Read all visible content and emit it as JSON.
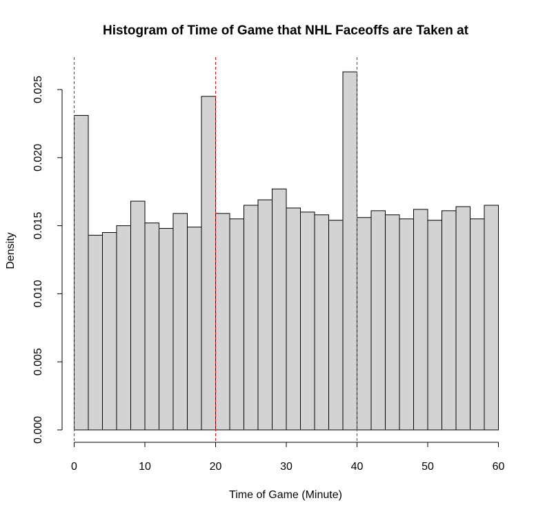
{
  "chart_data": {
    "type": "bar",
    "subtype": "histogram",
    "title": "Histogram of Time of Game that NHL Faceoffs are Taken at",
    "xlabel": "Time of Game (Minute)",
    "ylabel": "Density",
    "xlim": [
      0,
      60
    ],
    "ylim": [
      0,
      0.025
    ],
    "x_ticks": [
      "0",
      "10",
      "20",
      "30",
      "40",
      "50",
      "60"
    ],
    "y_ticks": [
      "0.000",
      "0.005",
      "0.010",
      "0.015",
      "0.020",
      "0.025"
    ],
    "bin_width": 2,
    "bins": [
      {
        "start": 0,
        "end": 2,
        "value": 0.0231
      },
      {
        "start": 2,
        "end": 4,
        "value": 0.0143
      },
      {
        "start": 4,
        "end": 6,
        "value": 0.0145
      },
      {
        "start": 6,
        "end": 8,
        "value": 0.015
      },
      {
        "start": 8,
        "end": 10,
        "value": 0.0168
      },
      {
        "start": 10,
        "end": 12,
        "value": 0.0152
      },
      {
        "start": 12,
        "end": 14,
        "value": 0.0148
      },
      {
        "start": 14,
        "end": 16,
        "value": 0.0159
      },
      {
        "start": 16,
        "end": 18,
        "value": 0.0149
      },
      {
        "start": 18,
        "end": 20,
        "value": 0.0245
      },
      {
        "start": 20,
        "end": 22,
        "value": 0.0159
      },
      {
        "start": 22,
        "end": 24,
        "value": 0.0155
      },
      {
        "start": 24,
        "end": 26,
        "value": 0.0165
      },
      {
        "start": 26,
        "end": 28,
        "value": 0.0169
      },
      {
        "start": 28,
        "end": 30,
        "value": 0.0177
      },
      {
        "start": 30,
        "end": 32,
        "value": 0.0163
      },
      {
        "start": 32,
        "end": 34,
        "value": 0.016
      },
      {
        "start": 34,
        "end": 36,
        "value": 0.0158
      },
      {
        "start": 36,
        "end": 38,
        "value": 0.0154
      },
      {
        "start": 38,
        "end": 40,
        "value": 0.0263
      },
      {
        "start": 40,
        "end": 42,
        "value": 0.0156
      },
      {
        "start": 42,
        "end": 44,
        "value": 0.0161
      },
      {
        "start": 44,
        "end": 46,
        "value": 0.0158
      },
      {
        "start": 46,
        "end": 48,
        "value": 0.0155
      },
      {
        "start": 48,
        "end": 50,
        "value": 0.0162
      },
      {
        "start": 50,
        "end": 52,
        "value": 0.0154
      },
      {
        "start": 52,
        "end": 54,
        "value": 0.0161
      },
      {
        "start": 54,
        "end": 56,
        "value": 0.0164
      },
      {
        "start": 56,
        "end": 58,
        "value": 0.0155
      },
      {
        "start": 58,
        "end": 60,
        "value": 0.0165
      }
    ],
    "reference_lines": [
      {
        "x": 0,
        "style": "dashed",
        "color": "#ff0000"
      },
      {
        "x": 20,
        "style": "dashed",
        "color": "#ff0000"
      },
      {
        "x": 40,
        "style": "dashed",
        "color": "#ff0000"
      }
    ],
    "bar_fill": "#d3d3d3",
    "bar_stroke": "#000000",
    "grid": false,
    "legend": "none"
  }
}
